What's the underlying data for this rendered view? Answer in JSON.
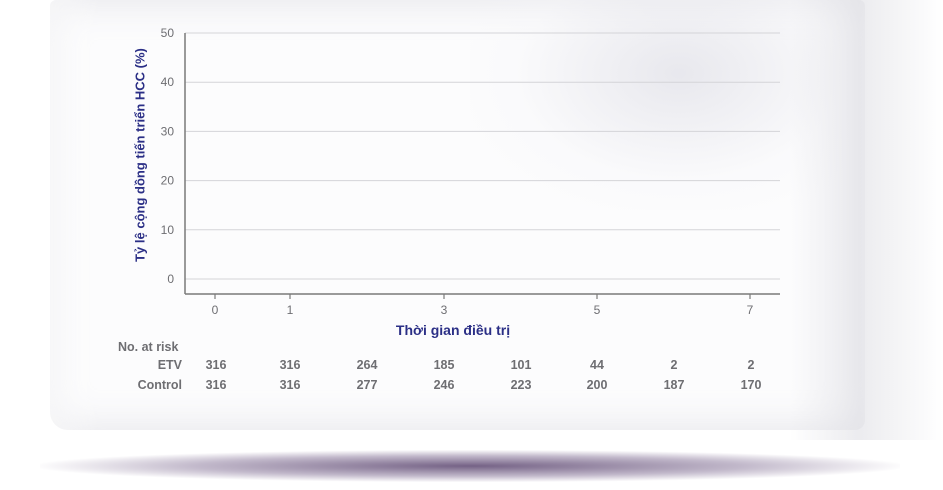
{
  "chart_data": {
    "type": "line",
    "title": "",
    "ylabel": "Tỷ lệ cộng dồng tiến  triển HCC (%)",
    "xlabel": "Thời gian điều trị",
    "ylim": [
      0,
      50
    ],
    "yticks": [
      "0",
      "10",
      "20",
      "30",
      "40",
      "50"
    ],
    "xticks": [
      "0",
      "1",
      "3",
      "5",
      "7"
    ],
    "grid": true,
    "series": []
  },
  "risk_table": {
    "title": "No. at risk",
    "rows": [
      {
        "name": "ETV",
        "values": [
          "316",
          "316",
          "264",
          "185",
          "101",
          "44",
          "2",
          "2"
        ]
      },
      {
        "name": "Control",
        "values": [
          "316",
          "316",
          "277",
          "246",
          "223",
          "200",
          "187",
          "170"
        ]
      }
    ]
  },
  "colors": {
    "axis_label": "#2b2f86",
    "text": "#6e6e72",
    "axis": "#7a7a7a",
    "grid": "#d4d4d8",
    "shadow": "#5c4670"
  }
}
